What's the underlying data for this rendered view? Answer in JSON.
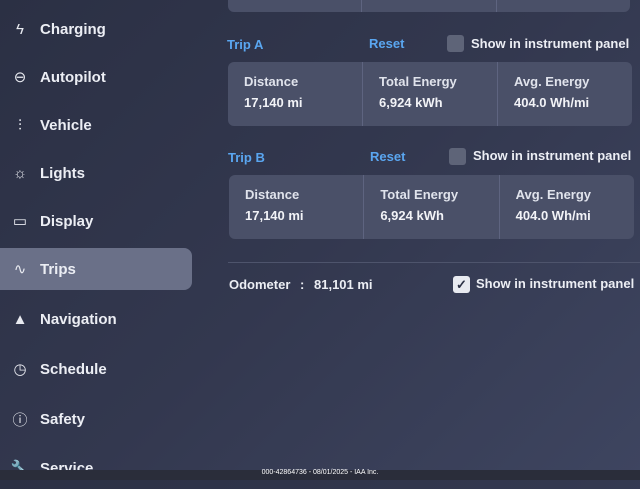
{
  "sidebar": {
    "items": [
      {
        "label": "Charging",
        "icon": "lightning-bolt-icon",
        "glyph": "ϟ",
        "active": false
      },
      {
        "label": "Autopilot",
        "icon": "steering-wheel-icon",
        "glyph": "⊖",
        "active": false
      },
      {
        "label": "Vehicle",
        "icon": "sliders-icon",
        "glyph": "⫶",
        "active": false
      },
      {
        "label": "Lights",
        "icon": "light-bulb-icon",
        "glyph": "☼",
        "active": false
      },
      {
        "label": "Display",
        "icon": "display-icon",
        "glyph": "▭",
        "active": false
      },
      {
        "label": "Trips",
        "icon": "trips-route-icon",
        "glyph": "∿",
        "active": true
      },
      {
        "label": "Navigation",
        "icon": "navigation-arrow-icon",
        "glyph": "▲",
        "active": false
      },
      {
        "label": "Schedule",
        "icon": "alarm-clock-icon",
        "glyph": "◷",
        "active": false
      },
      {
        "label": "Safety",
        "icon": "safety-alert-icon",
        "glyph": "ⓘ",
        "active": false
      },
      {
        "label": "Service",
        "icon": "wrench-icon",
        "glyph": "🔧",
        "active": false
      }
    ]
  },
  "trips": [
    {
      "title": "Trip A",
      "reset_label": "Reset",
      "show_label": "Show in instrument panel",
      "show_checked": false,
      "stats": [
        {
          "label": "Distance",
          "value": "17,140 mi"
        },
        {
          "label": "Total Energy",
          "value": "6,924 kWh"
        },
        {
          "label": "Avg. Energy",
          "value": "404.0 Wh/mi"
        }
      ]
    },
    {
      "title": "Trip B",
      "reset_label": "Reset",
      "show_label": "Show in instrument panel",
      "show_checked": false,
      "stats": [
        {
          "label": "Distance",
          "value": "17,140 mi"
        },
        {
          "label": "Total Energy",
          "value": "6,924 kWh"
        },
        {
          "label": "Avg. Energy",
          "value": "404.0 Wh/mi"
        }
      ]
    }
  ],
  "odometer": {
    "label": "Odometer",
    "separator": ":",
    "value": "81,101 mi",
    "show_label": "Show in instrument panel",
    "show_checked": true,
    "check_glyph": "✓"
  },
  "footer": {
    "text": "000-42864736 - 08/01/2025 - IAA Inc."
  },
  "colors": {
    "accent": "#5aa6f0",
    "background": "#33384f",
    "card": "#4a5068",
    "active_item": "#6a7088"
  }
}
